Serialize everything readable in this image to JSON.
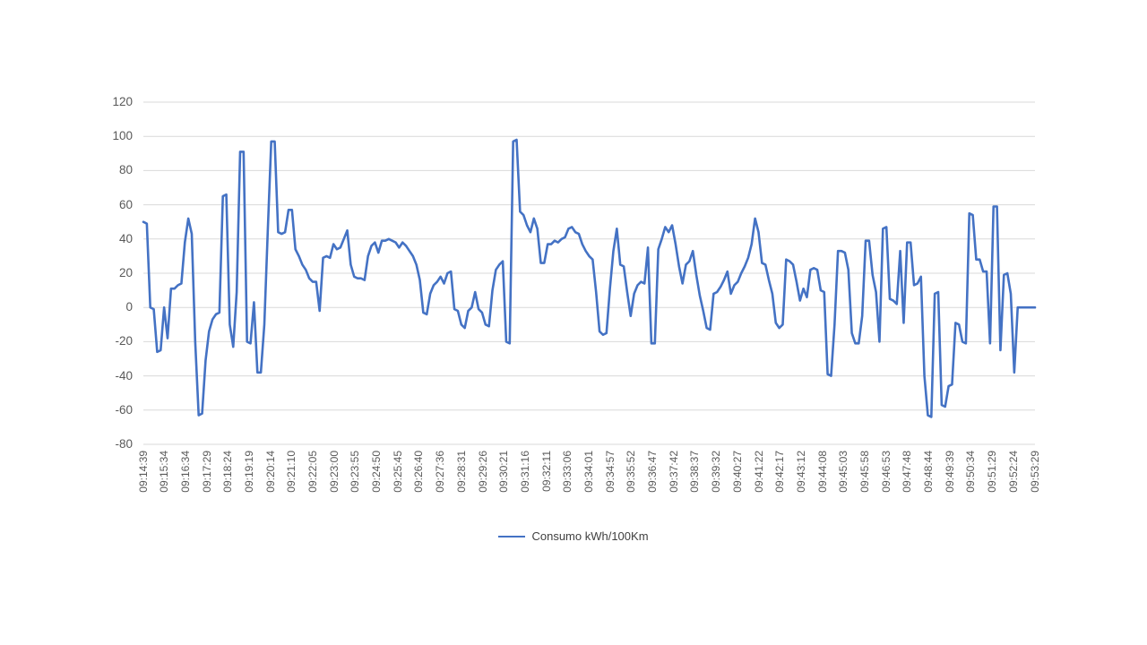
{
  "chart_data": {
    "type": "line",
    "title": "",
    "xlabel": "",
    "ylabel": "",
    "ylim": [
      -80,
      120
    ],
    "y_ticks": [
      120,
      100,
      80,
      60,
      40,
      20,
      0,
      -20,
      -40,
      -60,
      -80
    ],
    "grid": "horizontal",
    "grid_color": "#D9D9D9",
    "axis_text_color": "#595959",
    "legend_position": "bottom",
    "x_tick_labels": [
      "09:14:39",
      "09:15:34",
      "09:16:34",
      "09:17:29",
      "09:18:24",
      "09:19:19",
      "09:20:14",
      "09:21:10",
      "09:22:05",
      "09:23:00",
      "09:23:55",
      "09:24:50",
      "09:25:45",
      "09:26:40",
      "09:27:36",
      "09:28:31",
      "09:29:26",
      "09:30:21",
      "09:31:16",
      "09:32:11",
      "09:33:06",
      "09:34:01",
      "09:34:57",
      "09:35:52",
      "09:36:47",
      "09:37:42",
      "09:38:37",
      "09:39:32",
      "09:40:27",
      "09:41:22",
      "09:42:17",
      "09:43:12",
      "09:44:08",
      "09:45:03",
      "09:45:58",
      "09:46:53",
      "09:47:48",
      "09:48:44",
      "09:49:39",
      "09:50:34",
      "09:51:29",
      "09:52:24",
      "09:53:29"
    ],
    "series": [
      {
        "name": "Consumo kWh/100Km",
        "color": "#4472C4",
        "values": [
          50,
          49,
          0,
          -1,
          -26,
          -25,
          0,
          -18,
          11,
          11,
          13,
          14,
          38,
          52,
          43,
          -20,
          -63,
          -62,
          -31,
          -14,
          -7,
          -4,
          -3,
          65,
          66,
          -10,
          -23,
          9,
          91,
          91,
          -20,
          -21,
          3,
          -38,
          -38,
          -10,
          45,
          97,
          97,
          44,
          43,
          44,
          57,
          57,
          34,
          30,
          25,
          22,
          17,
          15,
          15,
          -2,
          29,
          30,
          29,
          37,
          34,
          35,
          40,
          45,
          25,
          18,
          17,
          17,
          16,
          30,
          36,
          38,
          32,
          39,
          39,
          40,
          39,
          38,
          35,
          38,
          36,
          33,
          30,
          25,
          16,
          -3,
          -4,
          8,
          13,
          15,
          18,
          14,
          20,
          21,
          -1,
          -2,
          -10,
          -12,
          -2,
          0,
          9,
          -1,
          -3,
          -10,
          -11,
          10,
          22,
          25,
          27,
          -20,
          -21,
          97,
          98,
          56,
          54,
          48,
          44,
          52,
          46,
          26,
          26,
          37,
          37,
          39,
          38,
          40,
          41,
          46,
          47,
          44,
          43,
          37,
          33,
          30,
          28,
          9,
          -14,
          -16,
          -15,
          11,
          33,
          46,
          25,
          24,
          9,
          -5,
          8,
          13,
          15,
          14,
          35,
          -21,
          -21,
          34,
          40,
          47,
          44,
          48,
          37,
          24,
          14,
          25,
          27,
          33,
          19,
          7,
          -2,
          -12,
          -13,
          8,
          9,
          12,
          16,
          21,
          8,
          13,
          15,
          20,
          24,
          29,
          37,
          52,
          44,
          26,
          25,
          16,
          8,
          -9,
          -12,
          -10,
          28,
          27,
          25,
          15,
          4,
          11,
          6,
          22,
          23,
          22,
          10,
          9,
          -39,
          -40,
          -10,
          33,
          33,
          32,
          22,
          -15,
          -21,
          -21,
          -5,
          39,
          39,
          19,
          9,
          -20,
          46,
          47,
          5,
          4,
          2,
          33,
          -9,
          38,
          38,
          13,
          14,
          18,
          -40,
          -63,
          -64,
          8,
          9,
          -57,
          -58,
          -46,
          -45,
          -9,
          -10,
          -20,
          -21,
          55,
          54,
          28,
          28,
          21,
          21,
          -21,
          59,
          59,
          -25,
          19,
          20,
          8,
          -38,
          0,
          0,
          0,
          0,
          0,
          0
        ]
      }
    ]
  },
  "legend": {
    "label": "Consumo kWh/100Km"
  }
}
